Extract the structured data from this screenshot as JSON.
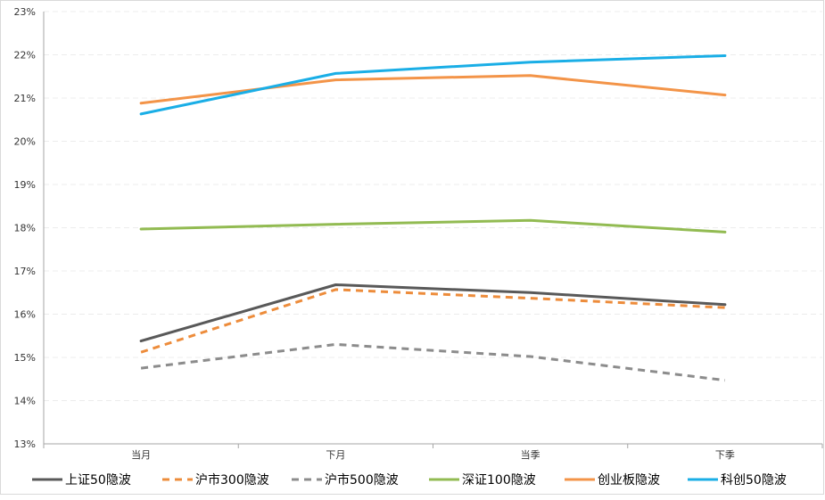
{
  "chart_data": {
    "type": "line",
    "categories": [
      "当月",
      "下月",
      "当季",
      "下季"
    ],
    "y_ticks": [
      "13%",
      "14%",
      "15%",
      "16%",
      "17%",
      "18%",
      "19%",
      "20%",
      "21%",
      "22%",
      "23%"
    ],
    "ylim": [
      13,
      23
    ],
    "unit": "%",
    "grid": true,
    "legend_position": "bottom",
    "series": [
      {
        "name": "上证50隐波",
        "values": [
          15.38,
          16.68,
          16.5,
          16.22
        ],
        "color": "#595959",
        "dashed": false
      },
      {
        "name": "沪市300隐波",
        "values": [
          15.12,
          16.57,
          16.37,
          16.15
        ],
        "color": "#ed8c3b",
        "dashed": true
      },
      {
        "name": "沪市500隐波",
        "values": [
          14.75,
          15.3,
          15.02,
          14.47
        ],
        "color": "#8c8c8c",
        "dashed": true
      },
      {
        "name": "深证100隐波",
        "values": [
          17.97,
          18.08,
          18.17,
          17.9
        ],
        "color": "#92bb52",
        "dashed": false
      },
      {
        "name": "创业板隐波",
        "values": [
          20.88,
          21.42,
          21.52,
          21.07
        ],
        "color": "#f39448",
        "dashed": false
      },
      {
        "name": "科创50隐波",
        "values": [
          20.63,
          21.57,
          21.83,
          21.98
        ],
        "color": "#1aaee6",
        "dashed": false
      }
    ]
  }
}
